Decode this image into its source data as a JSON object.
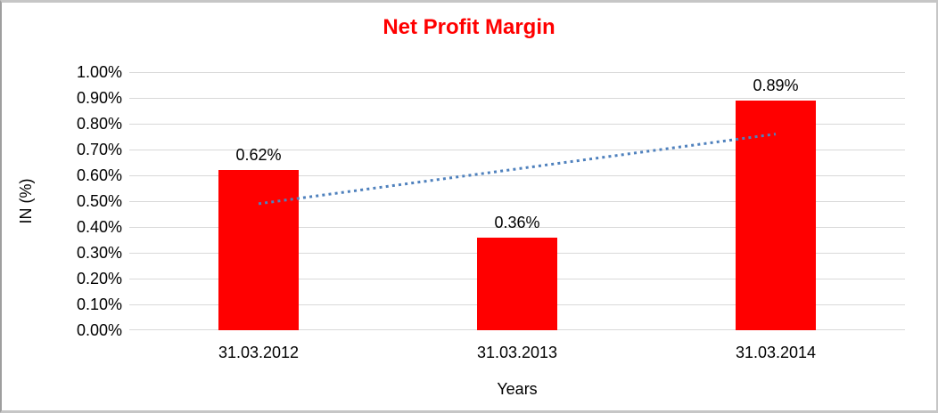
{
  "chart_data": {
    "type": "bar",
    "title": "Net Profit Margin",
    "title_color": "#ff0000",
    "xlabel": "Years",
    "ylabel": "IN (%)",
    "categories": [
      "31.03.2012",
      "31.03.2013",
      "31.03.2014"
    ],
    "values": [
      0.62,
      0.36,
      0.89
    ],
    "data_labels": [
      "0.62%",
      "0.36%",
      "0.89%"
    ],
    "ylim": [
      0,
      1.0
    ],
    "ytick_step": 0.1,
    "ytick_labels": [
      "0.00%",
      "0.10%",
      "0.20%",
      "0.30%",
      "0.40%",
      "0.50%",
      "0.60%",
      "0.70%",
      "0.80%",
      "0.90%",
      "1.00%"
    ],
    "bar_color": "#ff0000",
    "gridline_color": "#d9d9d9",
    "grid": true,
    "legend_position": "none",
    "trendline": {
      "type": "linear",
      "style": "dotted",
      "color": "#4f81bd",
      "start_value": 0.49,
      "end_value": 0.76
    }
  }
}
